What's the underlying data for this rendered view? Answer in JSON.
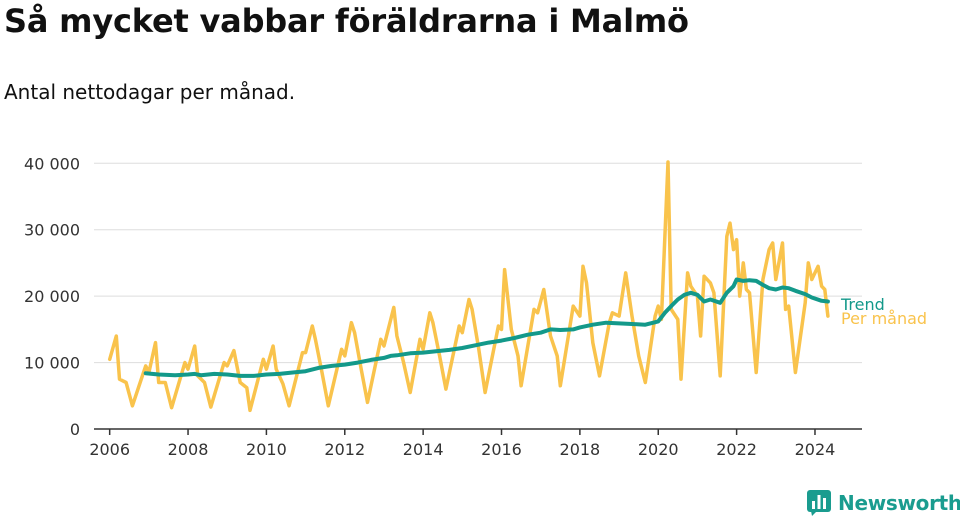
{
  "header": {
    "title": "Så mycket vabbar föräldrarna i Malmö",
    "subtitle": "Antal nettodagar per månad."
  },
  "brand": {
    "name": "Newsworthy"
  },
  "colors": {
    "monthly": "#f9c34c",
    "trend": "#13998a",
    "brand": "#1a9c8f",
    "grid": "#dddddd",
    "text": "#333333"
  },
  "chart_data": {
    "type": "line",
    "title": "Så mycket vabbar föräldrarna i Malmö",
    "subtitle": "Antal nettodagar per månad.",
    "xlabel": "",
    "ylabel": "",
    "xlim": [
      2005.6,
      2025.2
    ],
    "ylim": [
      0,
      42000
    ],
    "x_ticks": [
      2006,
      2008,
      2010,
      2012,
      2014,
      2016,
      2018,
      2020,
      2022,
      2024
    ],
    "x_tick_labels": [
      "2006",
      "2008",
      "2010",
      "2012",
      "2014",
      "2016",
      "2018",
      "2020",
      "2022",
      "2024"
    ],
    "y_ticks": [
      0,
      10000,
      20000,
      30000,
      40000
    ],
    "y_tick_labels": [
      "0",
      "10 000",
      "20 000",
      "30 000",
      "40 000"
    ],
    "grid": "horizontal",
    "legend": "direct labels at right end of lines",
    "series": [
      {
        "name": "Per månad",
        "color": "#f9c34c",
        "points": [
          [
            2006.0,
            10500
          ],
          [
            2006.17,
            14000
          ],
          [
            2006.25,
            7500
          ],
          [
            2006.42,
            7000
          ],
          [
            2006.58,
            3500
          ],
          [
            2006.92,
            9500
          ],
          [
            2007.0,
            8500
          ],
          [
            2007.17,
            13000
          ],
          [
            2007.25,
            7000
          ],
          [
            2007.42,
            7000
          ],
          [
            2007.58,
            3200
          ],
          [
            2007.92,
            10000
          ],
          [
            2008.0,
            9000
          ],
          [
            2008.17,
            12500
          ],
          [
            2008.25,
            8000
          ],
          [
            2008.42,
            7000
          ],
          [
            2008.58,
            3300
          ],
          [
            2008.92,
            10000
          ],
          [
            2009.0,
            9500
          ],
          [
            2009.17,
            11800
          ],
          [
            2009.33,
            7000
          ],
          [
            2009.5,
            6200
          ],
          [
            2009.58,
            2800
          ],
          [
            2009.92,
            10500
          ],
          [
            2010.0,
            9000
          ],
          [
            2010.17,
            12500
          ],
          [
            2010.25,
            9000
          ],
          [
            2010.42,
            6800
          ],
          [
            2010.58,
            3500
          ],
          [
            2010.92,
            11500
          ],
          [
            2011.0,
            11500
          ],
          [
            2011.17,
            15500
          ],
          [
            2011.25,
            13500
          ],
          [
            2011.42,
            8500
          ],
          [
            2011.58,
            3500
          ],
          [
            2011.92,
            12000
          ],
          [
            2012.0,
            11000
          ],
          [
            2012.17,
            16000
          ],
          [
            2012.25,
            14500
          ],
          [
            2012.42,
            9000
          ],
          [
            2012.58,
            4000
          ],
          [
            2012.92,
            13500
          ],
          [
            2013.0,
            12500
          ],
          [
            2013.25,
            18300
          ],
          [
            2013.33,
            14000
          ],
          [
            2013.5,
            10000
          ],
          [
            2013.67,
            5500
          ],
          [
            2013.92,
            13500
          ],
          [
            2014.0,
            12000
          ],
          [
            2014.17,
            17500
          ],
          [
            2014.25,
            16000
          ],
          [
            2014.42,
            11000
          ],
          [
            2014.58,
            6000
          ],
          [
            2014.92,
            15500
          ],
          [
            2015.0,
            14500
          ],
          [
            2015.17,
            19500
          ],
          [
            2015.25,
            18000
          ],
          [
            2015.42,
            12000
          ],
          [
            2015.58,
            5500
          ],
          [
            2015.92,
            15500
          ],
          [
            2016.0,
            15000
          ],
          [
            2016.08,
            24000
          ],
          [
            2016.25,
            15000
          ],
          [
            2016.42,
            11000
          ],
          [
            2016.5,
            6500
          ],
          [
            2016.83,
            18000
          ],
          [
            2016.92,
            17500
          ],
          [
            2017.08,
            21000
          ],
          [
            2017.25,
            14000
          ],
          [
            2017.42,
            11000
          ],
          [
            2017.5,
            6500
          ],
          [
            2017.83,
            18500
          ],
          [
            2018.0,
            17000
          ],
          [
            2018.08,
            24500
          ],
          [
            2018.17,
            22000
          ],
          [
            2018.33,
            13000
          ],
          [
            2018.5,
            8000
          ],
          [
            2018.75,
            16000
          ],
          [
            2018.83,
            17500
          ],
          [
            2019.0,
            17000
          ],
          [
            2019.17,
            23500
          ],
          [
            2019.33,
            17000
          ],
          [
            2019.5,
            11000
          ],
          [
            2019.67,
            7000
          ],
          [
            2019.92,
            17000
          ],
          [
            2020.0,
            18500
          ],
          [
            2020.08,
            16500
          ],
          [
            2020.25,
            40200
          ],
          [
            2020.33,
            18000
          ],
          [
            2020.5,
            16500
          ],
          [
            2020.58,
            7500
          ],
          [
            2020.75,
            23500
          ],
          [
            2020.83,
            21500
          ],
          [
            2021.0,
            20000
          ],
          [
            2021.08,
            14000
          ],
          [
            2021.17,
            23000
          ],
          [
            2021.33,
            22000
          ],
          [
            2021.42,
            20500
          ],
          [
            2021.58,
            8000
          ],
          [
            2021.75,
            29000
          ],
          [
            2021.83,
            31000
          ],
          [
            2021.92,
            27000
          ],
          [
            2022.0,
            28500
          ],
          [
            2022.08,
            20000
          ],
          [
            2022.17,
            25000
          ],
          [
            2022.25,
            21000
          ],
          [
            2022.33,
            20500
          ],
          [
            2022.5,
            8500
          ],
          [
            2022.67,
            22500
          ],
          [
            2022.83,
            27000
          ],
          [
            2022.92,
            28000
          ],
          [
            2023.0,
            22500
          ],
          [
            2023.17,
            28000
          ],
          [
            2023.25,
            18000
          ],
          [
            2023.33,
            18500
          ],
          [
            2023.5,
            8500
          ],
          [
            2023.75,
            19000
          ],
          [
            2023.83,
            25000
          ],
          [
            2023.92,
            22500
          ],
          [
            2024.08,
            24500
          ],
          [
            2024.17,
            21500
          ],
          [
            2024.25,
            21000
          ],
          [
            2024.33,
            17000
          ]
        ]
      },
      {
        "name": "Trend",
        "color": "#13998a",
        "points": [
          [
            2006.92,
            8400
          ],
          [
            2007.25,
            8200
          ],
          [
            2007.67,
            8100
          ],
          [
            2008.0,
            8200
          ],
          [
            2008.17,
            8300
          ],
          [
            2008.33,
            8100
          ],
          [
            2008.67,
            8300
          ],
          [
            2009.0,
            8200
          ],
          [
            2009.33,
            8000
          ],
          [
            2009.67,
            8000
          ],
          [
            2010.0,
            8200
          ],
          [
            2010.33,
            8300
          ],
          [
            2010.67,
            8500
          ],
          [
            2011.0,
            8700
          ],
          [
            2011.33,
            9200
          ],
          [
            2011.67,
            9500
          ],
          [
            2012.0,
            9700
          ],
          [
            2012.33,
            10000
          ],
          [
            2012.67,
            10400
          ],
          [
            2013.0,
            10700
          ],
          [
            2013.17,
            11000
          ],
          [
            2013.33,
            11100
          ],
          [
            2013.67,
            11400
          ],
          [
            2014.0,
            11500
          ],
          [
            2014.33,
            11700
          ],
          [
            2014.67,
            11900
          ],
          [
            2015.0,
            12200
          ],
          [
            2015.33,
            12600
          ],
          [
            2015.67,
            13000
          ],
          [
            2016.0,
            13300
          ],
          [
            2016.33,
            13700
          ],
          [
            2016.67,
            14200
          ],
          [
            2017.0,
            14500
          ],
          [
            2017.25,
            15000
          ],
          [
            2017.5,
            14900
          ],
          [
            2017.83,
            15000
          ],
          [
            2018.0,
            15300
          ],
          [
            2018.33,
            15700
          ],
          [
            2018.67,
            16000
          ],
          [
            2019.0,
            15900
          ],
          [
            2019.33,
            15800
          ],
          [
            2019.67,
            15700
          ],
          [
            2020.0,
            16200
          ],
          [
            2020.17,
            17500
          ],
          [
            2020.33,
            18500
          ],
          [
            2020.5,
            19500
          ],
          [
            2020.67,
            20200
          ],
          [
            2020.83,
            20500
          ],
          [
            2021.0,
            20200
          ],
          [
            2021.17,
            19200
          ],
          [
            2021.33,
            19500
          ],
          [
            2021.58,
            19000
          ],
          [
            2021.75,
            20500
          ],
          [
            2021.92,
            21500
          ],
          [
            2022.0,
            22500
          ],
          [
            2022.17,
            22300
          ],
          [
            2022.33,
            22400
          ],
          [
            2022.5,
            22300
          ],
          [
            2022.67,
            21700
          ],
          [
            2022.83,
            21200
          ],
          [
            2023.0,
            21000
          ],
          [
            2023.17,
            21300
          ],
          [
            2023.33,
            21200
          ],
          [
            2023.5,
            20800
          ],
          [
            2023.75,
            20300
          ],
          [
            2023.92,
            19800
          ],
          [
            2024.17,
            19300
          ],
          [
            2024.33,
            19200
          ]
        ]
      }
    ]
  }
}
